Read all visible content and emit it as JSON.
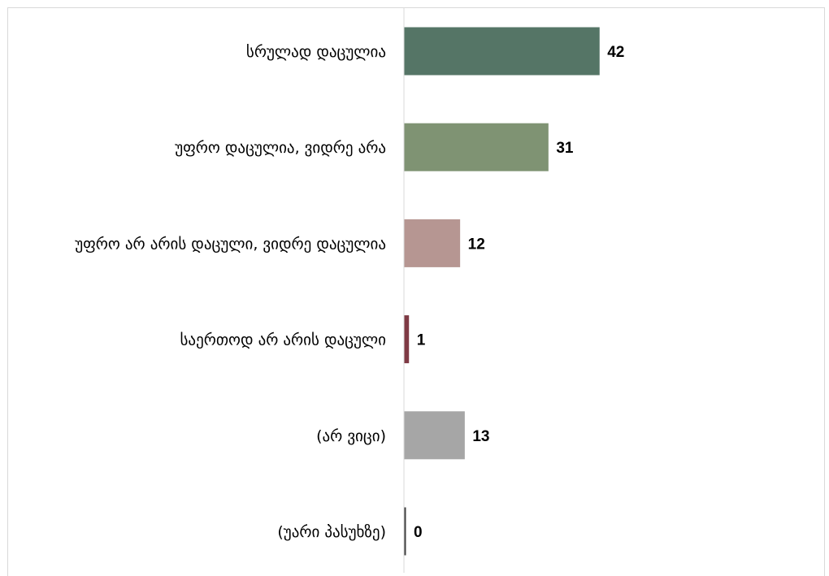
{
  "chart_data": {
    "type": "bar",
    "orientation": "horizontal",
    "categories": [
      "სრულად დაცულია",
      "უფრო დაცულია, ვიდრე არა",
      "უფრო არ არის დაცული, ვიდრე დაცულია",
      "საერთოდ არ არის დაცული",
      "(არ ვიცი)",
      "(უარი პასუხზე)"
    ],
    "values": [
      42,
      31,
      12,
      1,
      13,
      0
    ],
    "colors": [
      "#557566",
      "#7f9373",
      "#b69692",
      "#7e3a44",
      "#a6a6a6",
      "#404040"
    ],
    "xlim": [
      0,
      90
    ],
    "grid": false,
    "legend": "none"
  }
}
